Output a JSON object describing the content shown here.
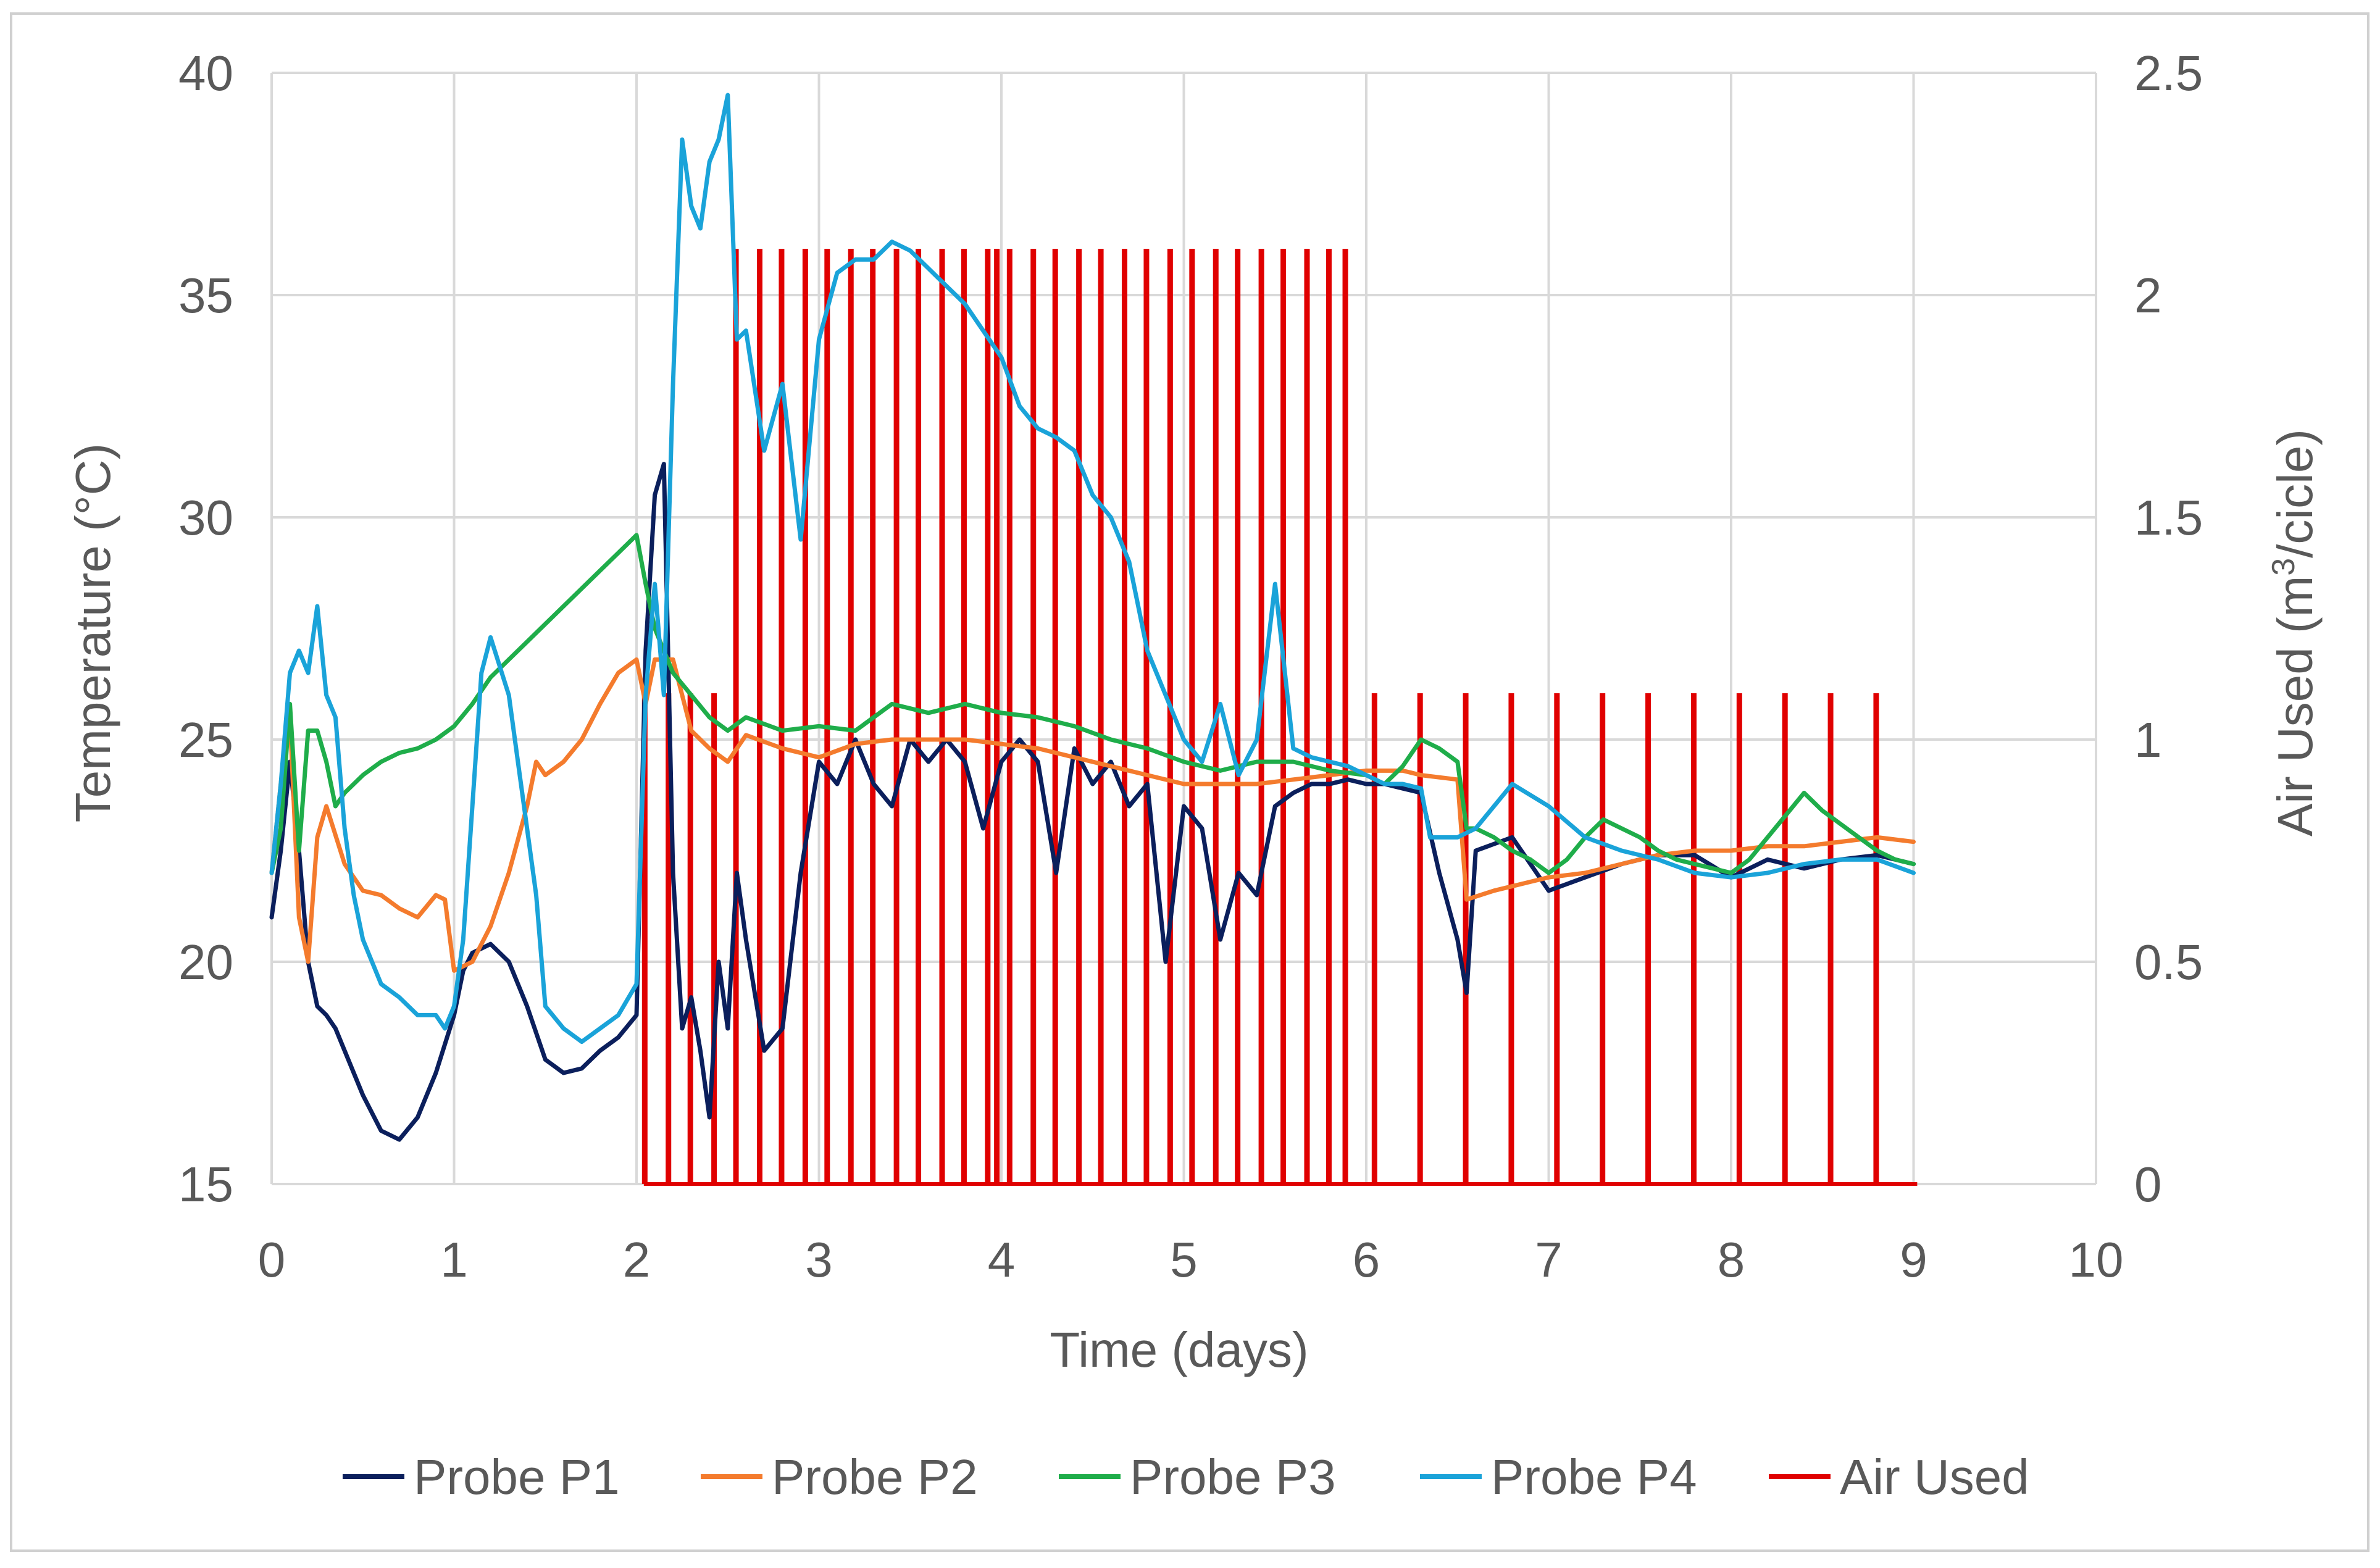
{
  "chart_data": {
    "type": "line",
    "title": "",
    "xlabel": "Time (days)",
    "ylabel": "Temperature (°C)",
    "y2label_prefix": "Air Used (m",
    "y2label_sup": "3",
    "y2label_suffix": "/cicle)",
    "xlim": [
      0,
      10
    ],
    "ylim": [
      15,
      40
    ],
    "y2lim": [
      0,
      2.5
    ],
    "xticks": [
      "0",
      "1",
      "2",
      "3",
      "4",
      "5",
      "6",
      "7",
      "8",
      "9",
      "10"
    ],
    "yticks": [
      "15",
      "20",
      "25",
      "30",
      "35",
      "40"
    ],
    "y2ticks": [
      "0",
      "0.5",
      "1",
      "1.5",
      "2",
      "2.5"
    ],
    "grid": true,
    "legend_position": "bottom",
    "series": [
      {
        "name": "Probe P1",
        "color": "#0b1f5c",
        "x": [
          0,
          0.05,
          0.1,
          0.15,
          0.2,
          0.25,
          0.3,
          0.35,
          0.4,
          0.5,
          0.6,
          0.7,
          0.8,
          0.9,
          1.0,
          1.05,
          1.1,
          1.2,
          1.3,
          1.4,
          1.5,
          1.6,
          1.7,
          1.8,
          1.9,
          2.0,
          2.05,
          2.1,
          2.15,
          2.2,
          2.25,
          2.3,
          2.35,
          2.4,
          2.45,
          2.5,
          2.55,
          2.6,
          2.7,
          2.8,
          2.9,
          3.0,
          3.1,
          3.2,
          3.3,
          3.4,
          3.5,
          3.6,
          3.7,
          3.8,
          3.9,
          4.0,
          4.1,
          4.2,
          4.3,
          4.4,
          4.5,
          4.6,
          4.7,
          4.8,
          4.9,
          5.0,
          5.1,
          5.2,
          5.3,
          5.4,
          5.5,
          5.6,
          5.7,
          5.8,
          5.9,
          6.0,
          6.1,
          6.2,
          6.3,
          6.4,
          6.5,
          6.55,
          6.6,
          6.8,
          7.0,
          7.2,
          7.4,
          7.6,
          7.8,
          8.0,
          8.2,
          8.4,
          8.6,
          8.8,
          9.0
        ],
        "values": [
          21.0,
          22.5,
          24.5,
          22.5,
          20.0,
          19.0,
          18.8,
          18.5,
          18.0,
          17.0,
          16.2,
          16.0,
          16.5,
          17.5,
          18.8,
          19.8,
          20.2,
          20.4,
          20.0,
          19.0,
          17.8,
          17.5,
          17.6,
          18.0,
          18.3,
          18.8,
          27.0,
          30.5,
          31.2,
          22.0,
          18.5,
          19.2,
          18.0,
          16.5,
          20.0,
          18.5,
          22.0,
          20.5,
          18.0,
          18.5,
          22.0,
          24.5,
          24.0,
          25.0,
          24.0,
          23.5,
          25.0,
          24.5,
          25.0,
          24.5,
          23.0,
          24.5,
          25.0,
          24.5,
          22.0,
          24.8,
          24.0,
          24.5,
          23.5,
          24.0,
          20.0,
          23.5,
          23.0,
          20.5,
          22.0,
          21.5,
          23.5,
          23.8,
          24.0,
          24.0,
          24.1,
          24.0,
          24.0,
          23.9,
          23.8,
          22.0,
          20.5,
          19.3,
          22.5,
          22.8,
          21.6,
          21.9,
          22.2,
          22.4,
          22.4,
          21.9,
          22.3,
          22.1,
          22.3,
          22.4,
          22.2
        ]
      },
      {
        "name": "Probe P2",
        "color": "#f47b2d",
        "x": [
          0,
          0.05,
          0.1,
          0.15,
          0.2,
          0.25,
          0.3,
          0.4,
          0.5,
          0.6,
          0.7,
          0.8,
          0.9,
          0.95,
          1.0,
          1.1,
          1.2,
          1.3,
          1.4,
          1.45,
          1.5,
          1.6,
          1.7,
          1.8,
          1.9,
          2.0,
          2.05,
          2.1,
          2.2,
          2.3,
          2.4,
          2.5,
          2.6,
          2.8,
          3.0,
          3.2,
          3.4,
          3.6,
          3.8,
          4.0,
          4.2,
          4.4,
          4.6,
          4.8,
          5.0,
          5.2,
          5.4,
          5.6,
          5.8,
          6.0,
          6.2,
          6.3,
          6.5,
          6.55,
          6.7,
          6.9,
          7.0,
          7.2,
          7.4,
          7.6,
          7.8,
          8.0,
          8.2,
          8.4,
          8.6,
          8.8,
          9.0
        ],
        "values": [
          22.0,
          24.0,
          25.5,
          21.0,
          20.0,
          22.8,
          23.5,
          22.2,
          21.6,
          21.5,
          21.2,
          21.0,
          21.5,
          21.4,
          19.8,
          20.0,
          20.8,
          22.0,
          23.5,
          24.5,
          24.2,
          24.5,
          25.0,
          25.8,
          26.5,
          26.8,
          25.8,
          26.8,
          26.8,
          25.2,
          24.8,
          24.5,
          25.1,
          24.8,
          24.6,
          24.9,
          25.0,
          25.0,
          25.0,
          24.9,
          24.8,
          24.6,
          24.4,
          24.2,
          24.0,
          24.0,
          24.0,
          24.1,
          24.2,
          24.3,
          24.3,
          24.2,
          24.1,
          21.4,
          21.6,
          21.8,
          21.9,
          22.0,
          22.2,
          22.4,
          22.5,
          22.5,
          22.6,
          22.6,
          22.7,
          22.8,
          22.7
        ]
      },
      {
        "name": "Probe P3",
        "color": "#1fad4a",
        "x": [
          0,
          0.05,
          0.1,
          0.15,
          0.2,
          0.25,
          0.3,
          0.35,
          0.4,
          0.5,
          0.6,
          0.7,
          0.8,
          0.9,
          1.0,
          1.1,
          1.2,
          1.3,
          1.4,
          1.5,
          1.6,
          1.7,
          1.8,
          1.9,
          2.0,
          2.05,
          2.1,
          2.2,
          2.3,
          2.4,
          2.5,
          2.6,
          2.8,
          3.0,
          3.2,
          3.4,
          3.6,
          3.8,
          4.0,
          4.2,
          4.4,
          4.6,
          4.8,
          5.0,
          5.2,
          5.4,
          5.6,
          5.8,
          6.0,
          6.1,
          6.2,
          6.3,
          6.4,
          6.5,
          6.55,
          6.6,
          6.7,
          6.8,
          6.9,
          7.0,
          7.1,
          7.2,
          7.3,
          7.4,
          7.5,
          7.6,
          7.7,
          7.8,
          8.0,
          8.1,
          8.2,
          8.3,
          8.4,
          8.5,
          8.6,
          8.7,
          8.8,
          8.9,
          9.0
        ],
        "values": [
          22.0,
          23.0,
          25.8,
          22.5,
          25.2,
          25.2,
          24.5,
          23.5,
          23.8,
          24.2,
          24.5,
          24.7,
          24.8,
          25.0,
          25.3,
          25.8,
          26.4,
          26.8,
          27.2,
          27.6,
          28.0,
          28.4,
          28.8,
          29.2,
          29.6,
          28.5,
          27.5,
          26.5,
          26.0,
          25.5,
          25.2,
          25.5,
          25.2,
          25.3,
          25.2,
          25.8,
          25.6,
          25.8,
          25.6,
          25.5,
          25.3,
          25.0,
          24.8,
          24.5,
          24.3,
          24.5,
          24.5,
          24.3,
          24.2,
          24.0,
          24.4,
          25.0,
          24.8,
          24.5,
          23.0,
          23.0,
          22.8,
          22.5,
          22.3,
          22.0,
          22.3,
          22.8,
          23.2,
          23.0,
          22.8,
          22.5,
          22.3,
          22.2,
          22.0,
          22.3,
          22.8,
          23.3,
          23.8,
          23.4,
          23.1,
          22.8,
          22.5,
          22.3,
          22.2
        ]
      },
      {
        "name": "Probe P4",
        "color": "#1aa3d9",
        "x": [
          0,
          0.05,
          0.1,
          0.15,
          0.2,
          0.25,
          0.3,
          0.35,
          0.4,
          0.45,
          0.5,
          0.6,
          0.7,
          0.8,
          0.9,
          0.95,
          1.0,
          1.05,
          1.1,
          1.15,
          1.2,
          1.3,
          1.35,
          1.4,
          1.45,
          1.5,
          1.6,
          1.7,
          1.8,
          1.9,
          2.0,
          2.05,
          2.1,
          2.15,
          2.2,
          2.25,
          2.3,
          2.35,
          2.4,
          2.45,
          2.5,
          2.55,
          2.6,
          2.7,
          2.8,
          2.9,
          3.0,
          3.1,
          3.2,
          3.3,
          3.4,
          3.5,
          3.6,
          3.7,
          3.8,
          3.9,
          4.0,
          4.1,
          4.2,
          4.3,
          4.4,
          4.5,
          4.6,
          4.7,
          4.8,
          4.9,
          5.0,
          5.1,
          5.2,
          5.3,
          5.4,
          5.5,
          5.6,
          5.7,
          5.8,
          5.9,
          6.0,
          6.1,
          6.2,
          6.3,
          6.35,
          6.5,
          6.6,
          6.8,
          7.0,
          7.2,
          7.4,
          7.6,
          7.8,
          8.0,
          8.2,
          8.4,
          8.6,
          8.8,
          9.0
        ],
        "values": [
          22.0,
          24.0,
          26.5,
          27.0,
          26.5,
          28.0,
          26.0,
          25.5,
          23.0,
          21.5,
          20.5,
          19.5,
          19.2,
          18.8,
          18.8,
          18.5,
          19.0,
          20.5,
          23.5,
          26.5,
          27.3,
          26.0,
          24.5,
          23.0,
          21.5,
          19.0,
          18.5,
          18.2,
          18.5,
          18.8,
          19.5,
          26.0,
          28.5,
          26.0,
          33.0,
          38.5,
          37.0,
          36.5,
          38.0,
          38.5,
          39.5,
          34.0,
          34.2,
          31.5,
          33.0,
          29.5,
          34.0,
          35.5,
          35.8,
          35.8,
          36.2,
          36.0,
          35.6,
          35.2,
          34.8,
          34.2,
          33.6,
          32.5,
          32.0,
          31.8,
          31.5,
          30.5,
          30.0,
          29.0,
          27.0,
          26.0,
          25.0,
          24.5,
          25.8,
          24.2,
          25.0,
          28.5,
          24.8,
          24.6,
          24.5,
          24.4,
          24.2,
          24.0,
          24.0,
          23.9,
          22.8,
          22.8,
          23.0,
          24.0,
          23.5,
          22.8,
          22.5,
          22.3,
          22.0,
          21.9,
          22.0,
          22.2,
          22.3,
          22.3,
          22.0
        ]
      },
      {
        "name": "Air Used",
        "color": "#e00000",
        "axis": "right",
        "baseline": 0,
        "spikes": [
          {
            "x": 2.04,
            "v": 1.1
          },
          {
            "x": 2.17,
            "v": 1.1
          },
          {
            "x": 2.29,
            "v": 1.1
          },
          {
            "x": 2.42,
            "v": 1.1
          },
          {
            "x": 2.54,
            "v": 2.1
          },
          {
            "x": 2.67,
            "v": 2.1
          },
          {
            "x": 2.79,
            "v": 2.1
          },
          {
            "x": 2.92,
            "v": 2.1
          },
          {
            "x": 3.04,
            "v": 2.1
          },
          {
            "x": 3.17,
            "v": 2.1
          },
          {
            "x": 3.29,
            "v": 2.1
          },
          {
            "x": 3.42,
            "v": 2.1
          },
          {
            "x": 3.54,
            "v": 2.1
          },
          {
            "x": 3.67,
            "v": 2.1
          },
          {
            "x": 3.79,
            "v": 2.1
          },
          {
            "x": 3.92,
            "v": 2.1
          },
          {
            "x": 3.97,
            "v": 2.1
          },
          {
            "x": 4.04,
            "v": 2.1
          },
          {
            "x": 4.17,
            "v": 2.1
          },
          {
            "x": 4.29,
            "v": 2.1
          },
          {
            "x": 4.42,
            "v": 2.1
          },
          {
            "x": 4.54,
            "v": 2.1
          },
          {
            "x": 4.67,
            "v": 2.1
          },
          {
            "x": 4.79,
            "v": 2.1
          },
          {
            "x": 4.92,
            "v": 2.1
          },
          {
            "x": 5.04,
            "v": 2.1
          },
          {
            "x": 5.17,
            "v": 2.1
          },
          {
            "x": 5.29,
            "v": 2.1
          },
          {
            "x": 5.42,
            "v": 2.1
          },
          {
            "x": 5.54,
            "v": 2.1
          },
          {
            "x": 5.67,
            "v": 2.1
          },
          {
            "x": 5.79,
            "v": 2.1
          },
          {
            "x": 5.88,
            "v": 2.1
          },
          {
            "x": 6.04,
            "v": 1.1
          },
          {
            "x": 6.29,
            "v": 1.1
          },
          {
            "x": 6.54,
            "v": 1.1
          },
          {
            "x": 6.79,
            "v": 1.1
          },
          {
            "x": 7.04,
            "v": 1.1
          },
          {
            "x": 7.29,
            "v": 1.1
          },
          {
            "x": 7.54,
            "v": 1.1
          },
          {
            "x": 7.79,
            "v": 1.1
          },
          {
            "x": 8.04,
            "v": 1.1
          },
          {
            "x": 8.29,
            "v": 1.1
          },
          {
            "x": 8.54,
            "v": 1.1
          },
          {
            "x": 8.79,
            "v": 1.1
          }
        ],
        "xend": 9.02
      }
    ]
  }
}
